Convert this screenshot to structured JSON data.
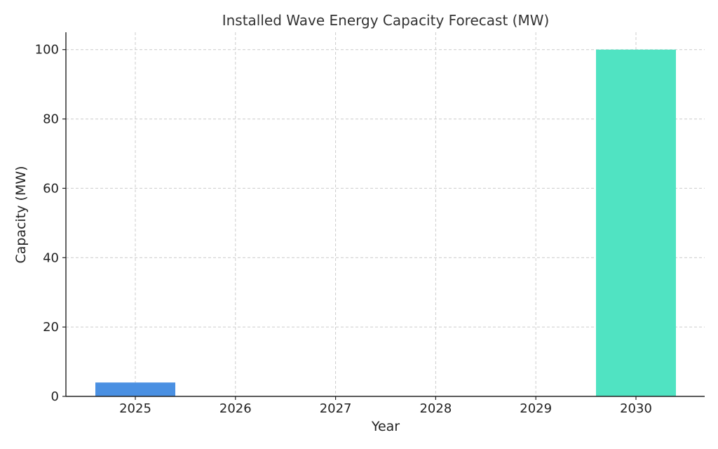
{
  "chart_data": {
    "type": "bar",
    "title": "Installed Wave Energy Capacity Forecast (MW)",
    "xlabel": "Year",
    "ylabel": "Capacity (MW)",
    "categories": [
      "2025",
      "2026",
      "2027",
      "2028",
      "2029",
      "2030"
    ],
    "values": [
      4,
      0,
      0,
      0,
      0,
      100
    ],
    "bar_colors": [
      "#4a90e2",
      "#4a90e2",
      "#4a90e2",
      "#4a90e2",
      "#4a90e2",
      "#50e3c2"
    ],
    "ylim": [
      0,
      105
    ],
    "yticks": [
      0,
      20,
      40,
      60,
      80,
      100
    ],
    "grid": true
  }
}
